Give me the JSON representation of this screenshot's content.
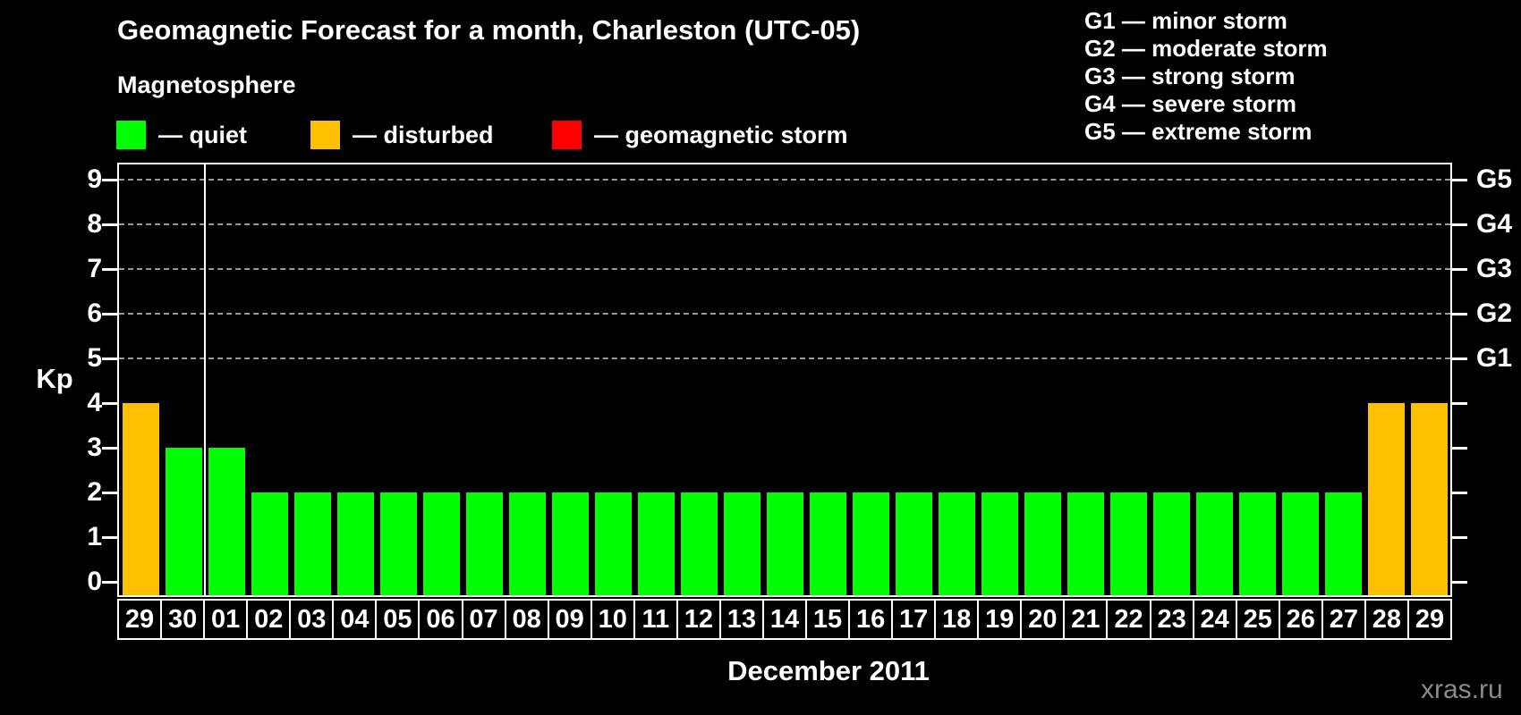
{
  "title": "Geomagnetic Forecast for a month, Charleston (UTC-05)",
  "subtitle": "Magnetosphere",
  "legend": {
    "items": [
      {
        "label": "— quiet",
        "status": "quiet",
        "color": "#00ff00"
      },
      {
        "label": "— disturbed",
        "status": "disturbed",
        "color": "#ffc000"
      },
      {
        "label": "— geomagnetic storm",
        "status": "storm",
        "color": "#ff0000"
      }
    ]
  },
  "storm_scale_legend": [
    "G1 — minor storm",
    "G2 — moderate storm",
    "G3 — strong storm",
    "G4 — severe storm",
    "G5 — extreme storm"
  ],
  "axes": {
    "y_label": "Kp",
    "y_ticks": [
      "0",
      "1",
      "2",
      "3",
      "4",
      "5",
      "6",
      "7",
      "8",
      "9"
    ],
    "g_gridline_values": [
      5,
      6,
      7,
      8,
      9
    ],
    "right_labels": [
      {
        "label": "G1",
        "value": 5
      },
      {
        "label": "G2",
        "value": 6
      },
      {
        "label": "G3",
        "value": 7
      },
      {
        "label": "G4",
        "value": 8
      },
      {
        "label": "G5",
        "value": 9
      }
    ],
    "x_label": "December 2011"
  },
  "watermark": "xras.ru",
  "chart_data": {
    "type": "bar",
    "title": "Geomagnetic Forecast for a month, Charleston (UTC-05)",
    "xlabel": "December 2011",
    "ylabel": "Kp",
    "ylim": [
      0,
      9
    ],
    "grid": "horizontal dashed lines at Kp 5,6,7,8,9 (G1–G5 levels)",
    "legend_position": "top",
    "categories": [
      "29",
      "30",
      "01",
      "02",
      "03",
      "04",
      "05",
      "06",
      "07",
      "08",
      "09",
      "10",
      "11",
      "12",
      "13",
      "14",
      "15",
      "16",
      "17",
      "18",
      "19",
      "20",
      "21",
      "22",
      "23",
      "24",
      "25",
      "26",
      "27",
      "28",
      "29"
    ],
    "values": [
      4,
      3,
      3,
      2,
      2,
      2,
      2,
      2,
      2,
      2,
      2,
      2,
      2,
      2,
      2,
      2,
      2,
      2,
      2,
      2,
      2,
      2,
      2,
      2,
      2,
      2,
      2,
      2,
      2,
      4,
      4
    ],
    "statuses": [
      "disturbed",
      "quiet",
      "quiet",
      "quiet",
      "quiet",
      "quiet",
      "quiet",
      "quiet",
      "quiet",
      "quiet",
      "quiet",
      "quiet",
      "quiet",
      "quiet",
      "quiet",
      "quiet",
      "quiet",
      "quiet",
      "quiet",
      "quiet",
      "quiet",
      "quiet",
      "quiet",
      "quiet",
      "quiet",
      "quiet",
      "quiet",
      "quiet",
      "quiet",
      "disturbed",
      "disturbed"
    ],
    "bar_color_rule": {
      "quiet": "#00ff00",
      "disturbed": "#ffc000",
      "storm": "#ff0000"
    },
    "month_boundary_after_index": 2,
    "right_axis": [
      {
        "label": "G1",
        "value": 5
      },
      {
        "label": "G2",
        "value": 6
      },
      {
        "label": "G3",
        "value": 7
      },
      {
        "label": "G4",
        "value": 8
      },
      {
        "label": "G5",
        "value": 9
      }
    ]
  }
}
